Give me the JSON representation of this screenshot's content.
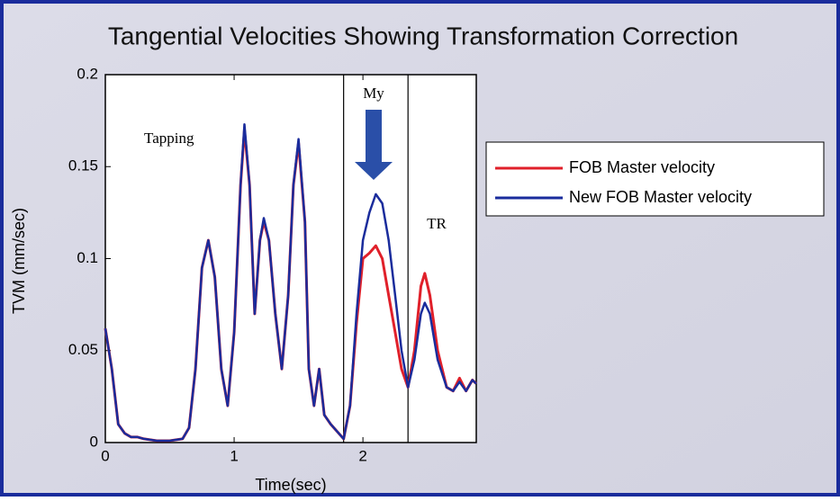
{
  "chart_data": {
    "type": "line",
    "title": "Tangential Velocities Showing Transformation Correction",
    "x_label": "Time(sec)",
    "y_label": "TVM (mm/sec)",
    "annotations": [
      "Tapping",
      "My",
      "TR"
    ],
    "vlines": [
      1.85,
      2.35
    ],
    "xlim": [
      0,
      2.88
    ],
    "ylim": [
      0,
      0.2
    ],
    "xticks": [
      0,
      1,
      2
    ],
    "yticks": [
      0,
      0.05,
      0.1,
      0.15,
      0.2
    ],
    "grid": false,
    "legend": "right",
    "x": [
      0,
      0.05,
      0.1,
      0.15,
      0.2,
      0.25,
      0.3,
      0.4,
      0.5,
      0.6,
      0.65,
      0.7,
      0.75,
      0.8,
      0.85,
      0.9,
      0.95,
      1.0,
      1.05,
      1.08,
      1.12,
      1.16,
      1.2,
      1.23,
      1.27,
      1.32,
      1.37,
      1.42,
      1.46,
      1.5,
      1.55,
      1.58,
      1.62,
      1.66,
      1.7,
      1.75,
      1.85,
      1.9,
      1.95,
      2.0,
      2.05,
      2.1,
      2.15,
      2.2,
      2.25,
      2.3,
      2.35,
      2.4,
      2.45,
      2.48,
      2.52,
      2.58,
      2.65,
      2.7,
      2.75,
      2.8,
      2.85,
      2.88
    ],
    "series": [
      {
        "name": "FOB Master velocity",
        "color": "#e0202a",
        "values": [
          0.062,
          0.04,
          0.01,
          0.005,
          0.003,
          0.003,
          0.002,
          0.001,
          0.001,
          0.002,
          0.008,
          0.04,
          0.095,
          0.11,
          0.09,
          0.04,
          0.02,
          0.06,
          0.14,
          0.17,
          0.14,
          0.07,
          0.11,
          0.12,
          0.11,
          0.07,
          0.04,
          0.08,
          0.14,
          0.163,
          0.12,
          0.04,
          0.02,
          0.04,
          0.015,
          0.01,
          0.002,
          0.02,
          0.065,
          0.1,
          0.103,
          0.107,
          0.1,
          0.08,
          0.06,
          0.04,
          0.03,
          0.05,
          0.085,
          0.092,
          0.08,
          0.05,
          0.03,
          0.028,
          0.035,
          0.028,
          0.034,
          0.032
        ]
      },
      {
        "name": "New FOB Master velocity",
        "color": "#1a2c9c",
        "values": [
          0.062,
          0.04,
          0.01,
          0.005,
          0.003,
          0.003,
          0.002,
          0.001,
          0.001,
          0.002,
          0.008,
          0.04,
          0.095,
          0.11,
          0.09,
          0.04,
          0.02,
          0.06,
          0.14,
          0.173,
          0.14,
          0.07,
          0.11,
          0.122,
          0.11,
          0.07,
          0.04,
          0.08,
          0.14,
          0.165,
          0.12,
          0.04,
          0.02,
          0.04,
          0.015,
          0.01,
          0.002,
          0.02,
          0.07,
          0.11,
          0.125,
          0.135,
          0.13,
          0.11,
          0.08,
          0.05,
          0.03,
          0.045,
          0.07,
          0.076,
          0.07,
          0.045,
          0.03,
          0.028,
          0.033,
          0.028,
          0.034,
          0.032
        ]
      }
    ]
  }
}
